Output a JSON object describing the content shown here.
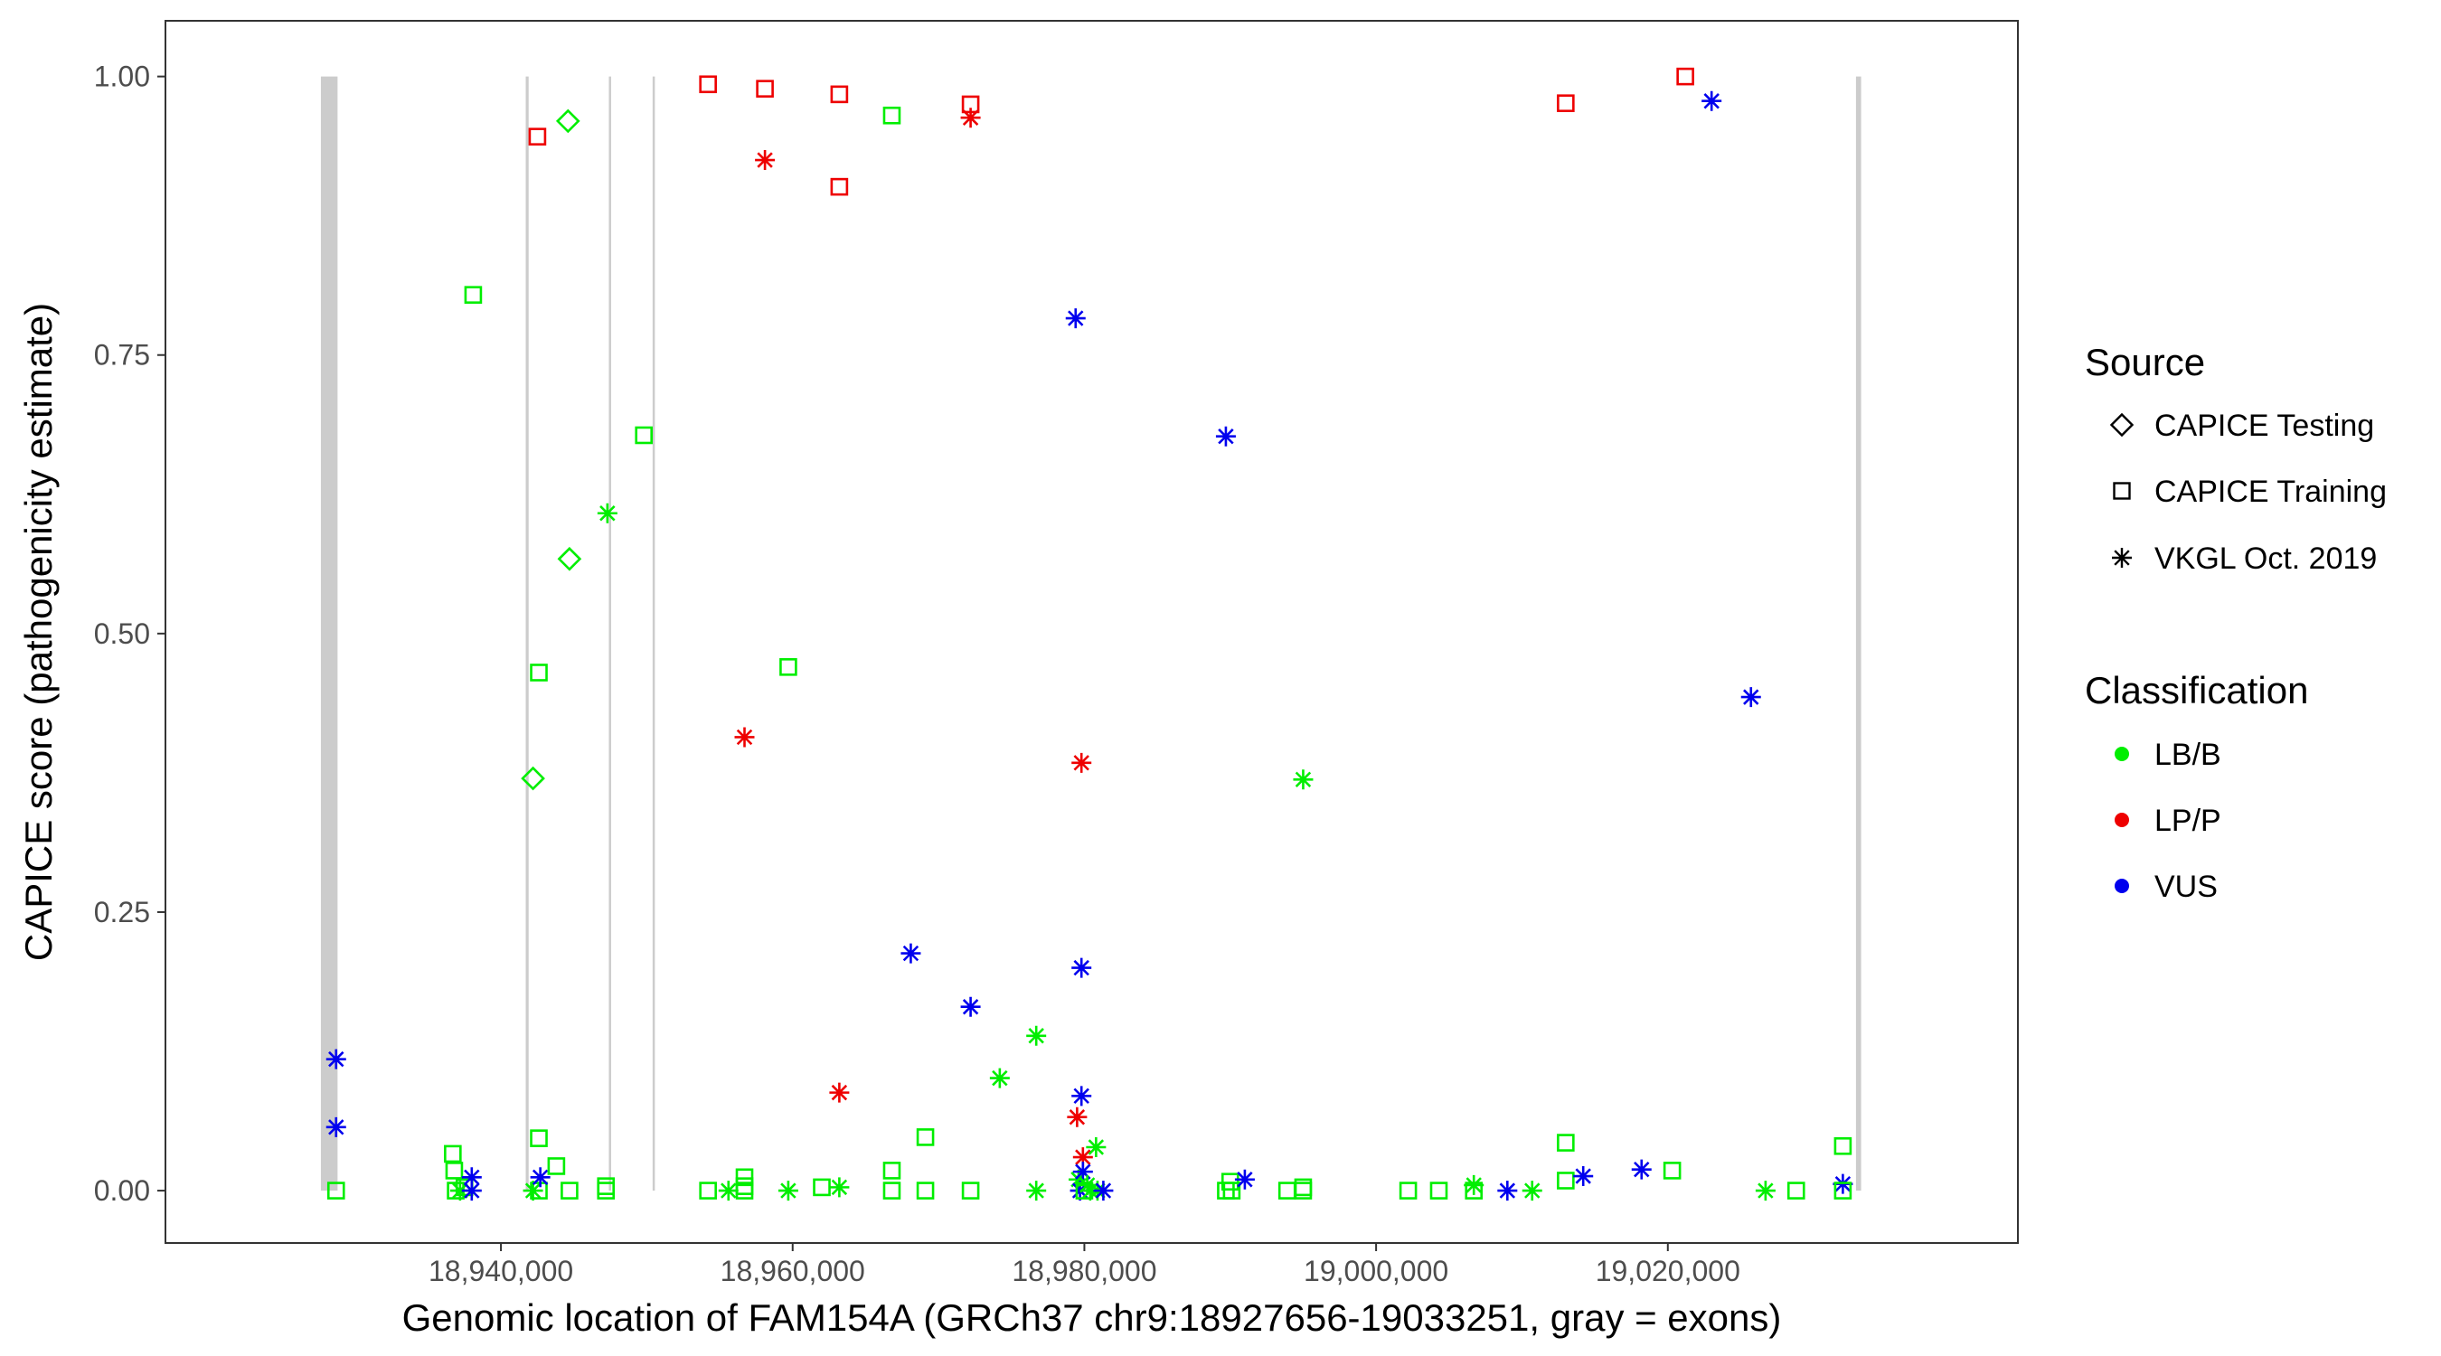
{
  "chart_data": {
    "type": "scatter",
    "title": "",
    "xlabel": "Genomic location of FAM154A (GRCh37 chr9:18927656-19033251, gray = exons)",
    "ylabel": "CAPICE score (pathogenicity estimate)",
    "xlim": [
      18917000,
      19044000
    ],
    "ylim": [
      -0.047,
      1.05
    ],
    "x_ticks": [
      18940000,
      18960000,
      18980000,
      19000000,
      19020000
    ],
    "x_tick_labels": [
      "18,940,000",
      "18,960,000",
      "18,980,000",
      "19,000,000",
      "19,020,000"
    ],
    "y_ticks": [
      0,
      0.25,
      0.5,
      0.75,
      1.0
    ],
    "y_tick_labels": [
      "0.00",
      "0.25",
      "0.50",
      "0.75",
      "1.00"
    ],
    "exons": [
      {
        "start": 18927656,
        "end": 18928800
      },
      {
        "start": 18941700,
        "end": 18941900
      },
      {
        "start": 18947400,
        "end": 18947480
      },
      {
        "start": 18950400,
        "end": 18950520
      },
      {
        "start": 19032900,
        "end": 19033251
      }
    ],
    "legend_source": {
      "title": "Source",
      "entries": [
        {
          "key": "testing",
          "label": "CAPICE Testing"
        },
        {
          "key": "training",
          "label": "CAPICE Training"
        },
        {
          "key": "vkgl",
          "label": "VKGL Oct. 2019"
        }
      ]
    },
    "legend_classification": {
      "title": "Classification",
      "entries": [
        {
          "key": "LB/B",
          "label": "LB/B",
          "color": "#00ee00"
        },
        {
          "key": "LP/P",
          "label": "LP/P",
          "color": "#ee0000"
        },
        {
          "key": "VUS",
          "label": "VUS",
          "color": "#0000ee"
        }
      ]
    },
    "colors": {
      "LB/B": "#00ee00",
      "LP/P": "#ee0000",
      "VUS": "#0000ee",
      "exon": "#cccccc",
      "border": "#333333",
      "tick_text": "#4d4d4d"
    },
    "points": [
      {
        "x": 18928700,
        "y": 0.118,
        "source": "vkgl",
        "class": "VUS"
      },
      {
        "x": 18928700,
        "y": 0.057,
        "source": "vkgl",
        "class": "VUS"
      },
      {
        "x": 18928700,
        "y": 0.0,
        "source": "training",
        "class": "LB/B"
      },
      {
        "x": 18936700,
        "y": 0.033,
        "source": "training",
        "class": "LB/B"
      },
      {
        "x": 18936800,
        "y": 0.018,
        "source": "training",
        "class": "LB/B"
      },
      {
        "x": 18936900,
        "y": 0.0,
        "source": "training",
        "class": "LB/B"
      },
      {
        "x": 18937200,
        "y": 0.0,
        "source": "vkgl",
        "class": "LB/B"
      },
      {
        "x": 18937500,
        "y": 0.003,
        "source": "training",
        "class": "LB/B"
      },
      {
        "x": 18938000,
        "y": 0.012,
        "source": "vkgl",
        "class": "VUS"
      },
      {
        "x": 18938000,
        "y": 0.0,
        "source": "vkgl",
        "class": "VUS"
      },
      {
        "x": 18938100,
        "y": 0.804,
        "source": "training",
        "class": "LB/B"
      },
      {
        "x": 18942200,
        "y": 0.0,
        "source": "vkgl",
        "class": "LB/B"
      },
      {
        "x": 18942200,
        "y": 0.37,
        "source": "testing",
        "class": "LB/B"
      },
      {
        "x": 18942500,
        "y": 0.946,
        "source": "training",
        "class": "LP/P"
      },
      {
        "x": 18942600,
        "y": 0.465,
        "source": "training",
        "class": "LB/B"
      },
      {
        "x": 18942600,
        "y": 0.047,
        "source": "training",
        "class": "LB/B"
      },
      {
        "x": 18942600,
        "y": 0.0,
        "source": "training",
        "class": "LB/B"
      },
      {
        "x": 18942700,
        "y": 0.012,
        "source": "vkgl",
        "class": "VUS"
      },
      {
        "x": 18943800,
        "y": 0.022,
        "source": "training",
        "class": "LB/B"
      },
      {
        "x": 18944600,
        "y": 0.96,
        "source": "testing",
        "class": "LB/B"
      },
      {
        "x": 18944700,
        "y": 0.567,
        "source": "testing",
        "class": "LB/B"
      },
      {
        "x": 18944700,
        "y": 0.0,
        "source": "training",
        "class": "LB/B"
      },
      {
        "x": 18947200,
        "y": 0.004,
        "source": "training",
        "class": "LB/B"
      },
      {
        "x": 18947200,
        "y": 0.0,
        "source": "training",
        "class": "LB/B"
      },
      {
        "x": 18947300,
        "y": 0.608,
        "source": "vkgl",
        "class": "LB/B"
      },
      {
        "x": 18949800,
        "y": 0.678,
        "source": "training",
        "class": "LB/B"
      },
      {
        "x": 18954200,
        "y": 0.993,
        "source": "training",
        "class": "LP/P"
      },
      {
        "x": 18954200,
        "y": 0.0,
        "source": "training",
        "class": "LB/B"
      },
      {
        "x": 18955600,
        "y": 0.0,
        "source": "vkgl",
        "class": "LB/B"
      },
      {
        "x": 18956700,
        "y": 0.407,
        "source": "vkgl",
        "class": "LP/P"
      },
      {
        "x": 18956700,
        "y": 0.012,
        "source": "training",
        "class": "LB/B"
      },
      {
        "x": 18956700,
        "y": 0.004,
        "source": "training",
        "class": "LB/B"
      },
      {
        "x": 18956700,
        "y": 0.0,
        "source": "training",
        "class": "LB/B"
      },
      {
        "x": 18958100,
        "y": 0.925,
        "source": "vkgl",
        "class": "LP/P"
      },
      {
        "x": 18958100,
        "y": 0.989,
        "source": "training",
        "class": "LP/P"
      },
      {
        "x": 18959700,
        "y": 0.47,
        "source": "training",
        "class": "LB/B"
      },
      {
        "x": 18959700,
        "y": 0.0,
        "source": "vkgl",
        "class": "LB/B"
      },
      {
        "x": 18962000,
        "y": 0.003,
        "source": "training",
        "class": "LB/B"
      },
      {
        "x": 18963200,
        "y": 0.088,
        "source": "vkgl",
        "class": "LP/P"
      },
      {
        "x": 18963200,
        "y": 0.984,
        "source": "training",
        "class": "LP/P"
      },
      {
        "x": 18963200,
        "y": 0.901,
        "source": "training",
        "class": "LP/P"
      },
      {
        "x": 18963200,
        "y": 0.003,
        "source": "vkgl",
        "class": "LB/B"
      },
      {
        "x": 18966800,
        "y": 0.965,
        "source": "training",
        "class": "LB/B"
      },
      {
        "x": 18966800,
        "y": 0.018,
        "source": "training",
        "class": "LB/B"
      },
      {
        "x": 18966800,
        "y": 0.0,
        "source": "training",
        "class": "LB/B"
      },
      {
        "x": 18968100,
        "y": 0.213,
        "source": "vkgl",
        "class": "VUS"
      },
      {
        "x": 18969100,
        "y": 0.048,
        "source": "training",
        "class": "LB/B"
      },
      {
        "x": 18969100,
        "y": 0.0,
        "source": "training",
        "class": "LB/B"
      },
      {
        "x": 18972200,
        "y": 0.975,
        "source": "training",
        "class": "LP/P"
      },
      {
        "x": 18972200,
        "y": 0.963,
        "source": "vkgl",
        "class": "LP/P"
      },
      {
        "x": 18972200,
        "y": 0.165,
        "source": "vkgl",
        "class": "VUS"
      },
      {
        "x": 18972200,
        "y": 0.0,
        "source": "training",
        "class": "LB/B"
      },
      {
        "x": 18974200,
        "y": 0.101,
        "source": "vkgl",
        "class": "LB/B"
      },
      {
        "x": 18976700,
        "y": 0.139,
        "source": "vkgl",
        "class": "LB/B"
      },
      {
        "x": 18976700,
        "y": 0.0,
        "source": "vkgl",
        "class": "LB/B"
      },
      {
        "x": 18979400,
        "y": 0.783,
        "source": "vkgl",
        "class": "VUS"
      },
      {
        "x": 18979500,
        "y": 0.066,
        "source": "vkgl",
        "class": "LP/P"
      },
      {
        "x": 18979600,
        "y": 0.01,
        "source": "vkgl",
        "class": "LB/B"
      },
      {
        "x": 18979700,
        "y": 0.0,
        "source": "vkgl",
        "class": "VUS"
      },
      {
        "x": 18979800,
        "y": 0.384,
        "source": "vkgl",
        "class": "LP/P"
      },
      {
        "x": 18979800,
        "y": 0.2,
        "source": "vkgl",
        "class": "VUS"
      },
      {
        "x": 18979800,
        "y": 0.085,
        "source": "vkgl",
        "class": "VUS"
      },
      {
        "x": 18979900,
        "y": 0.03,
        "source": "vkgl",
        "class": "LP/P"
      },
      {
        "x": 18979900,
        "y": 0.017,
        "source": "vkgl",
        "class": "VUS"
      },
      {
        "x": 18980000,
        "y": 0.0,
        "source": "training",
        "class": "LB/B"
      },
      {
        "x": 18980200,
        "y": 0.005,
        "source": "vkgl",
        "class": "LB/B"
      },
      {
        "x": 18980400,
        "y": 0.0,
        "source": "vkgl",
        "class": "LB/B"
      },
      {
        "x": 18980800,
        "y": 0.039,
        "source": "vkgl",
        "class": "LB/B"
      },
      {
        "x": 18980900,
        "y": 0.0,
        "source": "vkgl",
        "class": "LB/B"
      },
      {
        "x": 18981300,
        "y": 0.0,
        "source": "vkgl",
        "class": "VUS"
      },
      {
        "x": 18989700,
        "y": 0.677,
        "source": "vkgl",
        "class": "VUS"
      },
      {
        "x": 18989700,
        "y": 0.0,
        "source": "training",
        "class": "LB/B"
      },
      {
        "x": 18990000,
        "y": 0.008,
        "source": "training",
        "class": "LB/B"
      },
      {
        "x": 18990100,
        "y": 0.0,
        "source": "training",
        "class": "LB/B"
      },
      {
        "x": 18991000,
        "y": 0.01,
        "source": "vkgl",
        "class": "VUS"
      },
      {
        "x": 18993900,
        "y": 0.0,
        "source": "training",
        "class": "LB/B"
      },
      {
        "x": 18995000,
        "y": 0.369,
        "source": "vkgl",
        "class": "LB/B"
      },
      {
        "x": 18995000,
        "y": 0.003,
        "source": "training",
        "class": "LB/B"
      },
      {
        "x": 18995000,
        "y": 0.0,
        "source": "training",
        "class": "LB/B"
      },
      {
        "x": 19002200,
        "y": 0.0,
        "source": "training",
        "class": "LB/B"
      },
      {
        "x": 19004300,
        "y": 0.0,
        "source": "training",
        "class": "LB/B"
      },
      {
        "x": 19006700,
        "y": 0.005,
        "source": "vkgl",
        "class": "LB/B"
      },
      {
        "x": 19006700,
        "y": 0.0,
        "source": "training",
        "class": "LB/B"
      },
      {
        "x": 19009000,
        "y": 0.0,
        "source": "vkgl",
        "class": "VUS"
      },
      {
        "x": 19010700,
        "y": 0.0,
        "source": "vkgl",
        "class": "LB/B"
      },
      {
        "x": 19013000,
        "y": 0.976,
        "source": "training",
        "class": "LP/P"
      },
      {
        "x": 19013000,
        "y": 0.043,
        "source": "training",
        "class": "LB/B"
      },
      {
        "x": 19013000,
        "y": 0.009,
        "source": "training",
        "class": "LB/B"
      },
      {
        "x": 19014200,
        "y": 0.013,
        "source": "vkgl",
        "class": "VUS"
      },
      {
        "x": 19018200,
        "y": 0.019,
        "source": "vkgl",
        "class": "VUS"
      },
      {
        "x": 19020300,
        "y": 0.018,
        "source": "training",
        "class": "LB/B"
      },
      {
        "x": 19021200,
        "y": 1.0,
        "source": "training",
        "class": "LP/P"
      },
      {
        "x": 19023000,
        "y": 0.978,
        "source": "vkgl",
        "class": "VUS"
      },
      {
        "x": 19025700,
        "y": 0.443,
        "source": "vkgl",
        "class": "VUS"
      },
      {
        "x": 19026700,
        "y": 0.0,
        "source": "vkgl",
        "class": "LB/B"
      },
      {
        "x": 19028800,
        "y": 0.0,
        "source": "training",
        "class": "LB/B"
      },
      {
        "x": 19032000,
        "y": 0.04,
        "source": "training",
        "class": "LB/B"
      },
      {
        "x": 19032000,
        "y": 0.006,
        "source": "vkgl",
        "class": "VUS"
      },
      {
        "x": 19032000,
        "y": 0.0,
        "source": "training",
        "class": "LB/B"
      }
    ]
  }
}
